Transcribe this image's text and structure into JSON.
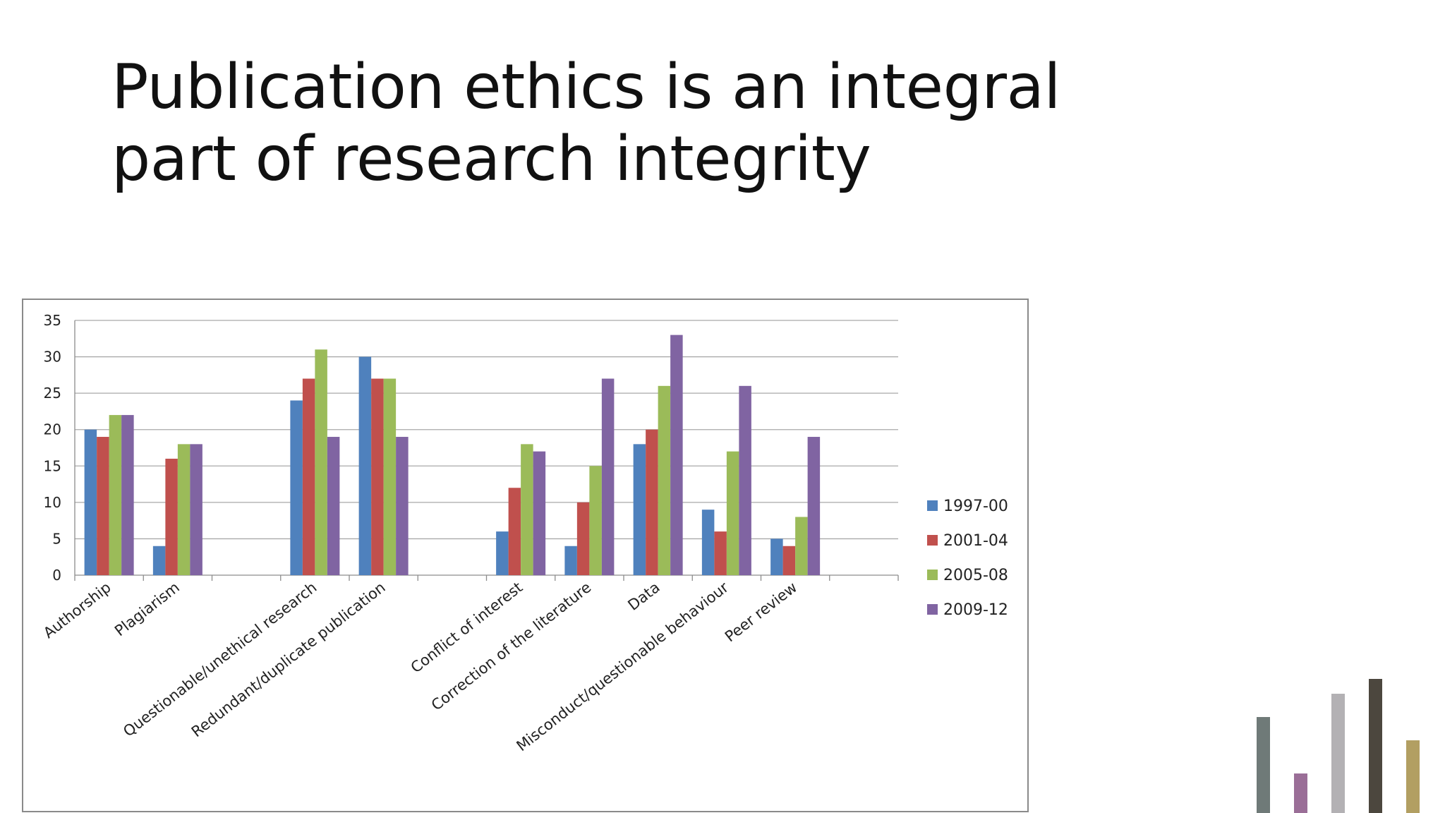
{
  "slide": {
    "title": "Publication ethics is an integral part of research integrity"
  },
  "chart_data": {
    "type": "bar",
    "categories": [
      "Authorship",
      "Plagiarism",
      "",
      "Questionable/unethical research",
      "Redundant/duplicate publication",
      "",
      "Conflict of interest",
      "Correction of the literature",
      "Data",
      "Misconduct/questionable behaviour",
      "Peer review",
      ""
    ],
    "series": [
      {
        "name": "1997-00",
        "color": "#4f81bd",
        "values": [
          20,
          4,
          null,
          24,
          30,
          null,
          6,
          4,
          18,
          9,
          5,
          null
        ]
      },
      {
        "name": "2001-04",
        "color": "#c0504d",
        "values": [
          19,
          16,
          null,
          27,
          27,
          null,
          12,
          10,
          20,
          6,
          4,
          null
        ]
      },
      {
        "name": "2005-08",
        "color": "#9bbb59",
        "values": [
          22,
          18,
          null,
          31,
          27,
          null,
          18,
          15,
          26,
          17,
          8,
          null
        ]
      },
      {
        "name": "2009-12",
        "color": "#8064a2",
        "values": [
          22,
          18,
          null,
          19,
          19,
          null,
          17,
          27,
          33,
          26,
          19,
          null
        ]
      }
    ],
    "yticks": [
      0,
      5,
      10,
      15,
      20,
      25,
      30,
      35
    ],
    "ylim": [
      0,
      35
    ],
    "grid": true,
    "legend_position": "right"
  },
  "decoration": {
    "bars": [
      {
        "name": "deco-bar-1",
        "color": "#6f7a78"
      },
      {
        "name": "deco-bar-2",
        "color": "#9a6e97"
      },
      {
        "name": "deco-bar-3",
        "color": "#b3b1b4"
      },
      {
        "name": "deco-bar-4",
        "color": "#4c473e"
      },
      {
        "name": "deco-bar-5",
        "color": "#b29f62"
      }
    ]
  }
}
